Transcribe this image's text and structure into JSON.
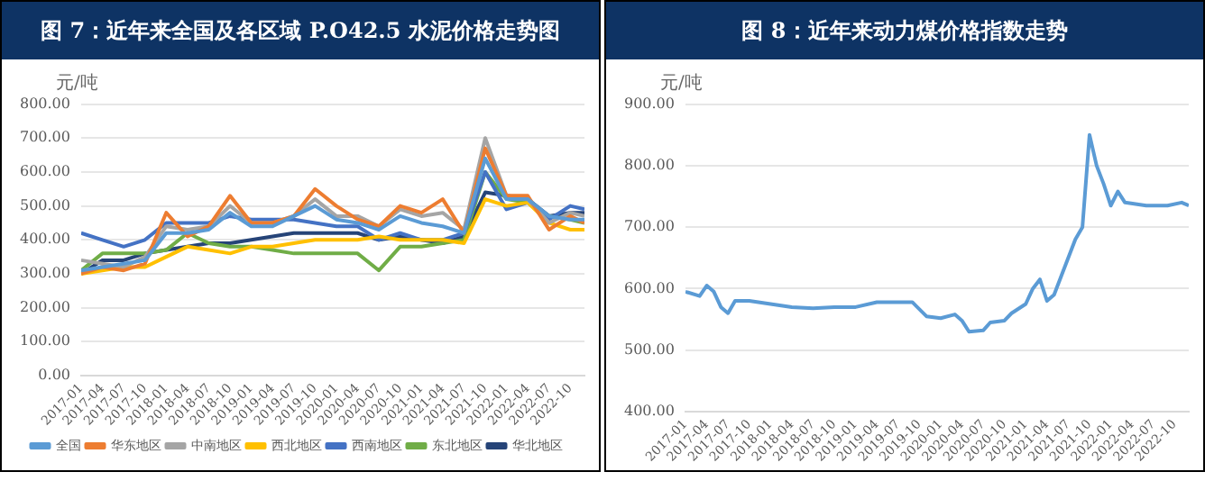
{
  "chart_data": [
    {
      "type": "line",
      "title": "图 7：近年来全国及各区域 P.O42.5 水泥价格走势图",
      "ylabel": "元/吨",
      "x": [
        "2017-01",
        "2017-04",
        "2017-07",
        "2017-10",
        "2018-01",
        "2018-04",
        "2018-07",
        "2018-10",
        "2019-01",
        "2019-04",
        "2019-07",
        "2019-10",
        "2020-01",
        "2020-04",
        "2020-07",
        "2020-10",
        "2021-01",
        "2021-04",
        "2021-07",
        "2021-10",
        "2022-01",
        "2022-04",
        "2022-07",
        "2022-10",
        "2022-12"
      ],
      "series": [
        {
          "name": "全国",
          "color": "#5b9bd5",
          "values": [
            310,
            320,
            330,
            340,
            420,
            420,
            430,
            480,
            440,
            440,
            470,
            500,
            460,
            450,
            430,
            470,
            450,
            440,
            420,
            640,
            520,
            520,
            470,
            460,
            460
          ]
        },
        {
          "name": "华东地区",
          "color": "#ed7d31",
          "values": [
            300,
            320,
            310,
            330,
            480,
            410,
            440,
            530,
            450,
            450,
            470,
            550,
            500,
            460,
            440,
            500,
            480,
            520,
            420,
            670,
            530,
            530,
            430,
            470,
            450
          ]
        },
        {
          "name": "中南地区",
          "color": "#a5a5a5",
          "values": [
            340,
            330,
            320,
            350,
            440,
            430,
            440,
            500,
            450,
            450,
            470,
            520,
            470,
            470,
            440,
            490,
            470,
            480,
            430,
            700,
            530,
            520,
            450,
            480,
            470
          ]
        },
        {
          "name": "西北地区",
          "color": "#ffc000",
          "values": [
            300,
            310,
            320,
            320,
            350,
            380,
            370,
            360,
            380,
            380,
            390,
            400,
            400,
            400,
            410,
            400,
            400,
            400,
            390,
            520,
            500,
            510,
            450,
            430,
            430
          ]
        },
        {
          "name": "西南地区",
          "color": "#4472c4",
          "values": [
            420,
            400,
            380,
            400,
            450,
            450,
            450,
            470,
            460,
            460,
            460,
            450,
            440,
            440,
            400,
            420,
            400,
            400,
            420,
            600,
            490,
            510,
            460,
            500,
            490
          ]
        },
        {
          "name": "东北地区",
          "color": "#70ad47",
          "values": [
            310,
            360,
            360,
            360,
            370,
            420,
            390,
            380,
            380,
            370,
            360,
            360,
            360,
            360,
            310,
            380,
            380,
            390,
            400,
            600,
            520,
            510,
            470,
            460,
            450
          ]
        },
        {
          "name": "华北地区",
          "color": "#264478",
          "values": [
            300,
            340,
            340,
            360,
            370,
            380,
            390,
            390,
            400,
            410,
            420,
            420,
            420,
            420,
            400,
            410,
            400,
            390,
            410,
            540,
            530,
            520,
            470,
            480,
            480
          ]
        }
      ],
      "xlim": [
        "2017-01",
        "2022-12"
      ],
      "xticks": [
        "2017-01",
        "2017-04",
        "2017-07",
        "2017-10",
        "2018-01",
        "2018-04",
        "2018-07",
        "2018-10",
        "2019-01",
        "2019-04",
        "2019-07",
        "2019-10",
        "2020-01",
        "2020-04",
        "2020-07",
        "2020-10",
        "2021-01",
        "2021-04",
        "2021-07",
        "2021-10",
        "2022-01",
        "2022-04",
        "2022-07",
        "2022-10"
      ],
      "ylim": [
        0,
        800
      ],
      "yticks": [
        {
          "value": 0,
          "label": "0.00"
        },
        {
          "value": 100,
          "label": "100.00"
        },
        {
          "value": 200,
          "label": "200.00"
        },
        {
          "value": 300,
          "label": "300.00"
        },
        {
          "value": 400,
          "label": "400.00"
        },
        {
          "value": 500,
          "label": "500.00"
        },
        {
          "value": 600,
          "label": "600.00"
        },
        {
          "value": 700,
          "label": "700.00"
        },
        {
          "value": 800,
          "label": "800.00"
        }
      ],
      "grid": "y",
      "legend": "bottom",
      "marker": "none",
      "line_style": "solid"
    },
    {
      "type": "line",
      "title": "图 8：近年来动力煤价格指数走势",
      "ylabel": "元/吨",
      "x": [
        "2017-01",
        "2017-03",
        "2017-04",
        "2017-05",
        "2017-06",
        "2017-07",
        "2017-08",
        "2017-10",
        "2018-01",
        "2018-04",
        "2018-07",
        "2018-10",
        "2019-01",
        "2019-04",
        "2019-07",
        "2019-09",
        "2019-11",
        "2020-01",
        "2020-03",
        "2020-04",
        "2020-05",
        "2020-07",
        "2020-08",
        "2020-10",
        "2020-11",
        "2021-01",
        "2021-02",
        "2021-03",
        "2021-04",
        "2021-05",
        "2021-06",
        "2021-07",
        "2021-08",
        "2021-09",
        "2021-10",
        "2021-11",
        "2021-12",
        "2022-01",
        "2022-02",
        "2022-03",
        "2022-06",
        "2022-09",
        "2022-11",
        "2022-12"
      ],
      "series": [
        {
          "color": "#5b9bd5",
          "values": [
            595,
            588,
            605,
            595,
            570,
            560,
            580,
            580,
            575,
            570,
            568,
            570,
            570,
            578,
            578,
            578,
            555,
            552,
            558,
            548,
            530,
            532,
            545,
            548,
            560,
            575,
            600,
            615,
            580,
            590,
            620,
            650,
            680,
            700,
            850,
            800,
            770,
            735,
            758,
            740,
            735,
            735,
            740,
            735
          ]
        }
      ],
      "xlim": [
        "2017-01",
        "2022-12"
      ],
      "xticks": [
        "2017-01",
        "2017-04",
        "2017-07",
        "2017-10",
        "2018-01",
        "2018-04",
        "2018-07",
        "2018-10",
        "2019-01",
        "2019-04",
        "2019-07",
        "2019-10",
        "2020-01",
        "2020-04",
        "2020-07",
        "2020-10",
        "2021-01",
        "2021-04",
        "2021-07",
        "2021-10",
        "2022-01",
        "2022-04",
        "2022-07",
        "2022-10"
      ],
      "ylim": [
        400,
        900
      ],
      "yticks": [
        {
          "value": 400,
          "label": "400.00"
        },
        {
          "value": 500,
          "label": "500.00"
        },
        {
          "value": 600,
          "label": "600.00"
        },
        {
          "value": 700,
          "label": "700.00"
        },
        {
          "value": 800,
          "label": "800.00"
        },
        {
          "value": 900,
          "label": "900.00"
        }
      ],
      "grid": "y",
      "legend": false,
      "marker": "none",
      "line_style": "solid"
    }
  ]
}
